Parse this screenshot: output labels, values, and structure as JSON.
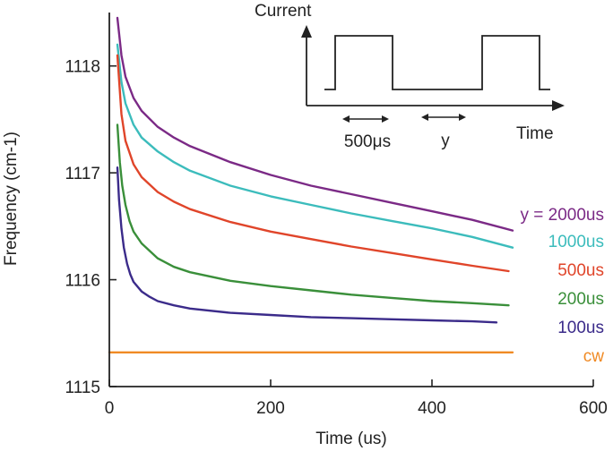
{
  "chart_data": {
    "type": "line",
    "title": "",
    "xlabel": "Time (us)",
    "ylabel": "Frequency (cm-1)",
    "xlim": [
      0,
      600
    ],
    "ylim": [
      1115,
      1118.5
    ],
    "x_ticks": [
      "0",
      "200",
      "400",
      "600"
    ],
    "y_ticks": [
      "1115",
      "1116",
      "1117",
      "1118"
    ],
    "grid": false,
    "legend": "right, labels next to curve ends",
    "series": [
      {
        "name": "y = 2000us",
        "color": "#7b2a86",
        "x": [
          10,
          15,
          20,
          30,
          40,
          60,
          80,
          100,
          150,
          200,
          250,
          300,
          350,
          400,
          450,
          500
        ],
        "y": [
          1118.45,
          1118.1,
          1117.9,
          1117.7,
          1117.58,
          1117.43,
          1117.33,
          1117.25,
          1117.1,
          1116.98,
          1116.88,
          1116.8,
          1116.72,
          1116.64,
          1116.56,
          1116.46
        ]
      },
      {
        "name": "1000us",
        "color": "#3cbcbc",
        "x": [
          10,
          15,
          20,
          30,
          40,
          60,
          80,
          100,
          150,
          200,
          250,
          300,
          350,
          400,
          450,
          500
        ],
        "y": [
          1118.2,
          1117.85,
          1117.65,
          1117.45,
          1117.33,
          1117.2,
          1117.1,
          1117.02,
          1116.88,
          1116.78,
          1116.7,
          1116.62,
          1116.55,
          1116.48,
          1116.4,
          1116.3
        ]
      },
      {
        "name": "500us",
        "color": "#e0452a",
        "x": [
          10,
          15,
          20,
          30,
          40,
          60,
          80,
          100,
          150,
          200,
          250,
          300,
          350,
          400,
          450,
          495
        ],
        "y": [
          1118.1,
          1117.55,
          1117.3,
          1117.08,
          1116.96,
          1116.82,
          1116.73,
          1116.66,
          1116.54,
          1116.45,
          1116.38,
          1116.31,
          1116.25,
          1116.19,
          1116.13,
          1116.08
        ]
      },
      {
        "name": "200us",
        "color": "#3a8f3a",
        "x": [
          10,
          13,
          16,
          20,
          25,
          30,
          40,
          60,
          80,
          100,
          150,
          200,
          250,
          300,
          350,
          400,
          450,
          495
        ],
        "y": [
          1117.45,
          1117.1,
          1116.88,
          1116.7,
          1116.55,
          1116.45,
          1116.34,
          1116.2,
          1116.12,
          1116.07,
          1115.99,
          1115.94,
          1115.9,
          1115.86,
          1115.83,
          1115.8,
          1115.78,
          1115.76
        ]
      },
      {
        "name": "100us",
        "color": "#3b2b8a",
        "x": [
          10,
          12,
          15,
          18,
          22,
          26,
          30,
          40,
          50,
          60,
          80,
          100,
          150,
          200,
          250,
          300,
          350,
          400,
          450,
          480
        ],
        "y": [
          1117.05,
          1116.75,
          1116.48,
          1116.3,
          1116.15,
          1116.05,
          1115.98,
          1115.89,
          1115.84,
          1115.8,
          1115.76,
          1115.73,
          1115.69,
          1115.67,
          1115.65,
          1115.64,
          1115.63,
          1115.62,
          1115.61,
          1115.6
        ]
      },
      {
        "name": "cw",
        "color": "#f08a24",
        "x": [
          0,
          500
        ],
        "y": [
          1115.32,
          1115.32
        ]
      }
    ],
    "inset": {
      "ylabel": "Current",
      "xlabel": "Time",
      "pulse_label": "500μs",
      "gap_label": "y"
    }
  }
}
